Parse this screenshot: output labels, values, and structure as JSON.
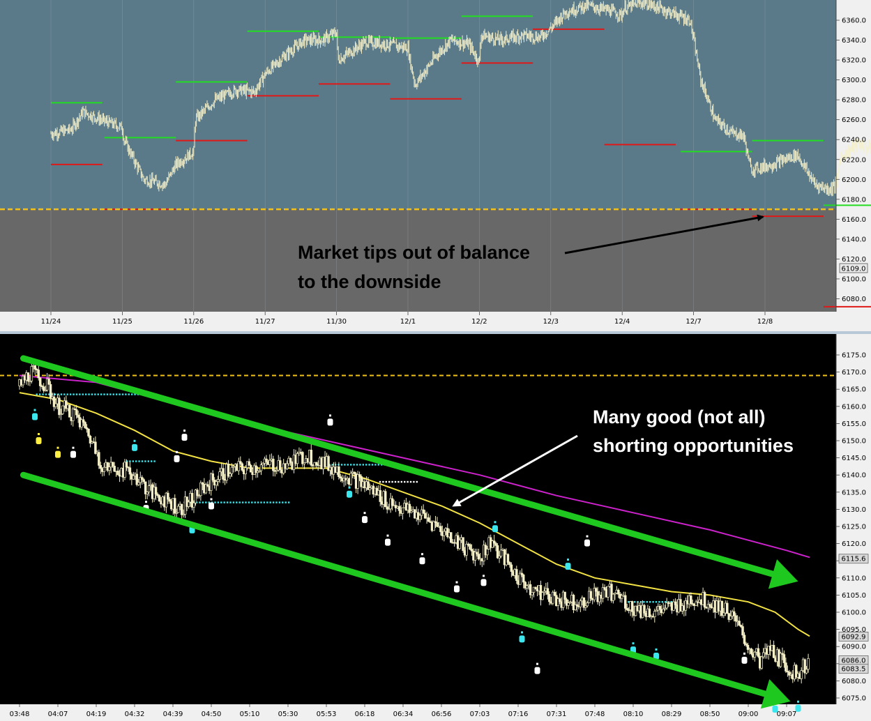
{
  "chart_data": [
    {
      "type": "candlestick",
      "title": "",
      "x_ticks": [
        "11/24",
        "11/25",
        "11/26",
        "11/27",
        "11/30",
        "12/1",
        "12/2",
        "12/3",
        "12/4",
        "12/7",
        "12/8"
      ],
      "y_ticks": [
        "6360.0",
        "6340.0",
        "6320.0",
        "6300.0",
        "6280.0",
        "6260.0",
        "6240.0",
        "6220.0",
        "6200.0",
        "6180.0",
        "6160.0",
        "6140.0",
        "6120.0",
        "6100.0",
        "6080.0"
      ],
      "ylim": [
        6071,
        6374
      ],
      "last_price_label": "6109.0",
      "balance_level": 6170,
      "price_path": [
        [
          0,
          6246
        ],
        [
          0.28,
          6250
        ],
        [
          0.45,
          6268
        ],
        [
          0.7,
          6260
        ],
        [
          1.0,
          6252
        ],
        [
          1.02,
          6240
        ],
        [
          1.3,
          6200
        ],
        [
          1.6,
          6195
        ],
        [
          1.75,
          6215
        ],
        [
          2.0,
          6228
        ],
        [
          2.02,
          6260
        ],
        [
          2.3,
          6280
        ],
        [
          2.6,
          6290
        ],
        [
          2.85,
          6288
        ],
        [
          3.0,
          6306
        ],
        [
          3.3,
          6326
        ],
        [
          3.55,
          6340
        ],
        [
          3.8,
          6340
        ],
        [
          4.0,
          6348
        ],
        [
          4.02,
          6320
        ],
        [
          4.4,
          6338
        ],
        [
          4.7,
          6336
        ],
        [
          5.0,
          6332
        ],
        [
          5.02,
          6322
        ],
        [
          5.1,
          6295
        ],
        [
          5.4,
          6325
        ],
        [
          5.6,
          6340
        ],
        [
          5.85,
          6336
        ],
        [
          6.0,
          6318
        ],
        [
          6.02,
          6345
        ],
        [
          6.3,
          6340
        ],
        [
          6.6,
          6345
        ],
        [
          6.85,
          6343
        ],
        [
          7.0,
          6352
        ],
        [
          7.2,
          6368
        ],
        [
          7.5,
          6375
        ],
        [
          7.8,
          6370
        ],
        [
          8.0,
          6365
        ],
        [
          8.02,
          6372
        ],
        [
          8.3,
          6378
        ],
        [
          8.6,
          6370
        ],
        [
          8.95,
          6360
        ],
        [
          9.1,
          6300
        ],
        [
          9.3,
          6260
        ],
        [
          9.55,
          6246
        ],
        [
          9.7,
          6244
        ],
        [
          9.8,
          6210
        ],
        [
          10.1,
          6215
        ],
        [
          10.45,
          6225
        ],
        [
          10.7,
          6195
        ],
        [
          10.9,
          6190
        ],
        [
          11.0,
          6195
        ],
        [
          11.05,
          6222
        ],
        [
          11.3,
          6236
        ],
        [
          11.65,
          6225
        ],
        [
          11.9,
          6205
        ],
        [
          12.0,
          6188
        ],
        [
          12.05,
          6170
        ],
        [
          12.2,
          6160
        ],
        [
          12.4,
          6145
        ],
        [
          12.6,
          6125
        ],
        [
          12.8,
          6107
        ],
        [
          12.95,
          6090
        ],
        [
          13.0,
          6080
        ],
        [
          13.1,
          6105
        ],
        [
          13.15,
          6115
        ]
      ],
      "value_area_high": [
        {
          "session": 0,
          "from": 0,
          "to": 0.72,
          "level": 6277
        },
        {
          "session": 1,
          "from": 0.75,
          "to": 1.75,
          "level": 6242
        },
        {
          "session": 2,
          "from": 1.75,
          "to": 2.75,
          "level": 6298
        },
        {
          "session": 3,
          "from": 2.75,
          "to": 3.75,
          "level": 6349
        },
        {
          "session": 4,
          "from": 3.75,
          "to": 4.75,
          "level": 6343
        },
        {
          "session": 5,
          "from": 4.75,
          "to": 5.75,
          "level": 6342
        },
        {
          "session": 6,
          "from": 5.75,
          "to": 6.75,
          "level": 6364
        },
        {
          "session": 9,
          "from": 8.82,
          "to": 9.82,
          "level": 6228
        },
        {
          "session": 10,
          "from": 9.82,
          "to": 10.82,
          "level": 6239
        },
        {
          "session": 11,
          "from": 10.82,
          "to": 11.82,
          "level": 6174
        }
      ],
      "value_area_low": [
        {
          "session": 0,
          "from": 0,
          "to": 0.72,
          "level": 6215
        },
        {
          "session": 1,
          "from": 0.75,
          "to": 1.75,
          "level": 6170
        },
        {
          "session": 2,
          "from": 1.75,
          "to": 2.75,
          "level": 6239
        },
        {
          "session": 3,
          "from": 2.75,
          "to": 3.75,
          "level": 6284
        },
        {
          "session": 4,
          "from": 3.75,
          "to": 4.75,
          "level": 6296
        },
        {
          "session": 5,
          "from": 4.75,
          "to": 5.75,
          "level": 6281
        },
        {
          "session": 6,
          "from": 5.75,
          "to": 6.75,
          "level": 6317
        },
        {
          "session": 7,
          "from": 6.75,
          "to": 7.75,
          "level": 6351
        },
        {
          "session": 8,
          "from": 7.75,
          "to": 8.75,
          "level": 6235
        },
        {
          "session": 9,
          "from": 8.82,
          "to": 9.82,
          "level": 6170
        },
        {
          "session": 10,
          "from": 9.82,
          "to": 10.82,
          "level": 6163
        },
        {
          "session": 11,
          "from": 10.82,
          "to": 11.82,
          "level": 6072
        }
      ]
    },
    {
      "type": "candlestick",
      "title": "",
      "x_ticks": [
        "03:48",
        "04:07",
        "04:19",
        "04:32",
        "04:39",
        "04:50",
        "05:10",
        "05:30",
        "05:53",
        "06:18",
        "06:34",
        "06:56",
        "07:03",
        "07:16",
        "07:31",
        "07:48",
        "08:10",
        "08:29",
        "08:50",
        "09:00",
        "09:07"
      ],
      "y_ticks": [
        "6175.0",
        "6170.0",
        "6165.0",
        "6160.0",
        "6155.0",
        "6150.0",
        "6145.0",
        "6140.0",
        "6135.0",
        "6130.0",
        "6125.0",
        "6120.0",
        "6115.0",
        "6110.0",
        "6105.0",
        "6100.0",
        "6095.0",
        "6090.0",
        "6085.0",
        "6080.0",
        "6075.0"
      ],
      "ylim": [
        6073,
        6178
      ],
      "price_labels": [
        "6115.6",
        "6092.9",
        "6086.0",
        "6083.5"
      ],
      "balance_level": 6169,
      "price_path": [
        [
          0,
          6166
        ],
        [
          0.3,
          6170
        ],
        [
          0.7,
          6166
        ],
        [
          1.0,
          6160
        ],
        [
          1.4,
          6158
        ],
        [
          1.8,
          6152
        ],
        [
          2.2,
          6142
        ],
        [
          2.6,
          6142
        ],
        [
          3.0,
          6140
        ],
        [
          3.4,
          6135
        ],
        [
          3.8,
          6133
        ],
        [
          4.2,
          6130
        ],
        [
          4.6,
          6134
        ],
        [
          5.0,
          6138
        ],
        [
          5.4,
          6141
        ],
        [
          6.0,
          6142
        ],
        [
          6.6,
          6143
        ],
        [
          7.0,
          6143
        ],
        [
          7.5,
          6146
        ],
        [
          8.0,
          6143
        ],
        [
          8.5,
          6140
        ],
        [
          9.0,
          6137
        ],
        [
          9.5,
          6133
        ],
        [
          10.0,
          6130
        ],
        [
          10.5,
          6128
        ],
        [
          11.0,
          6124
        ],
        [
          11.5,
          6120
        ],
        [
          12.0,
          6116
        ],
        [
          12.3,
          6121
        ],
        [
          12.6,
          6116
        ],
        [
          13.0,
          6110
        ],
        [
          13.5,
          6106
        ],
        [
          14.0,
          6104
        ],
        [
          14.5,
          6103
        ],
        [
          15.0,
          6105
        ],
        [
          15.5,
          6106
        ],
        [
          16.0,
          6101
        ],
        [
          16.5,
          6100
        ],
        [
          17.0,
          6101
        ],
        [
          17.5,
          6104
        ],
        [
          18.0,
          6103
        ],
        [
          18.5,
          6100
        ],
        [
          19.0,
          6090
        ],
        [
          19.3,
          6086
        ],
        [
          19.6,
          6089
        ],
        [
          20.0,
          6084
        ],
        [
          20.3,
          6082
        ],
        [
          20.6,
          6086
        ]
      ],
      "moving_average_yellow": [
        [
          0,
          6164
        ],
        [
          1.0,
          6162
        ],
        [
          2.0,
          6158
        ],
        [
          3.0,
          6153
        ],
        [
          4.0,
          6147
        ],
        [
          5.0,
          6144
        ],
        [
          6.0,
          6142
        ],
        [
          7.0,
          6142
        ],
        [
          8.0,
          6142
        ],
        [
          9.0,
          6139
        ],
        [
          10.0,
          6135
        ],
        [
          11.0,
          6131
        ],
        [
          12.0,
          6126
        ],
        [
          13.0,
          6120
        ],
        [
          14.0,
          6114
        ],
        [
          15.0,
          6110
        ],
        [
          16.0,
          6108
        ],
        [
          17.0,
          6106
        ],
        [
          18.0,
          6105
        ],
        [
          19.0,
          6103
        ],
        [
          19.7,
          6100
        ],
        [
          20.3,
          6095
        ],
        [
          20.6,
          6093
        ]
      ],
      "moving_average_magenta": [
        [
          0,
          6169
        ],
        [
          2.0,
          6167
        ],
        [
          4.0,
          6161
        ],
        [
          6.0,
          6155
        ],
        [
          8.0,
          6150
        ],
        [
          10.0,
          6145
        ],
        [
          12.0,
          6140
        ],
        [
          14.0,
          6134
        ],
        [
          16.0,
          6129
        ],
        [
          18.0,
          6124
        ],
        [
          20.0,
          6118
        ],
        [
          20.6,
          6116
        ]
      ],
      "trend_channel_upper": [
        [
          0.1,
          6174
        ],
        [
          20.3,
          6109
        ]
      ],
      "trend_channel_lower": [
        [
          0.1,
          6140
        ],
        [
          20.1,
          6074
        ]
      ]
    }
  ],
  "annotations": {
    "top": {
      "line1": "Market tips out of balance",
      "line2": "to the downside"
    },
    "bottom": {
      "line1": "Many good (not all)",
      "line2": "shorting opportunities"
    }
  },
  "colors": {
    "top_bg_above": "#5a7a89",
    "top_bg_below": "#686868",
    "bottom_bg": "#000000",
    "candle": "#f5f0c8",
    "value_area_high": "#22dd22",
    "value_area_low": "#e01818",
    "balance_line": "#f2c21c",
    "moving_average_yellow": "#f2e244",
    "moving_average_magenta": "#cc22cc",
    "trend_channel": "#1fc81f",
    "marker_cyan": "#3ce6ee",
    "marker_white": "#ffffff",
    "marker_yellow": "#ffee44"
  }
}
